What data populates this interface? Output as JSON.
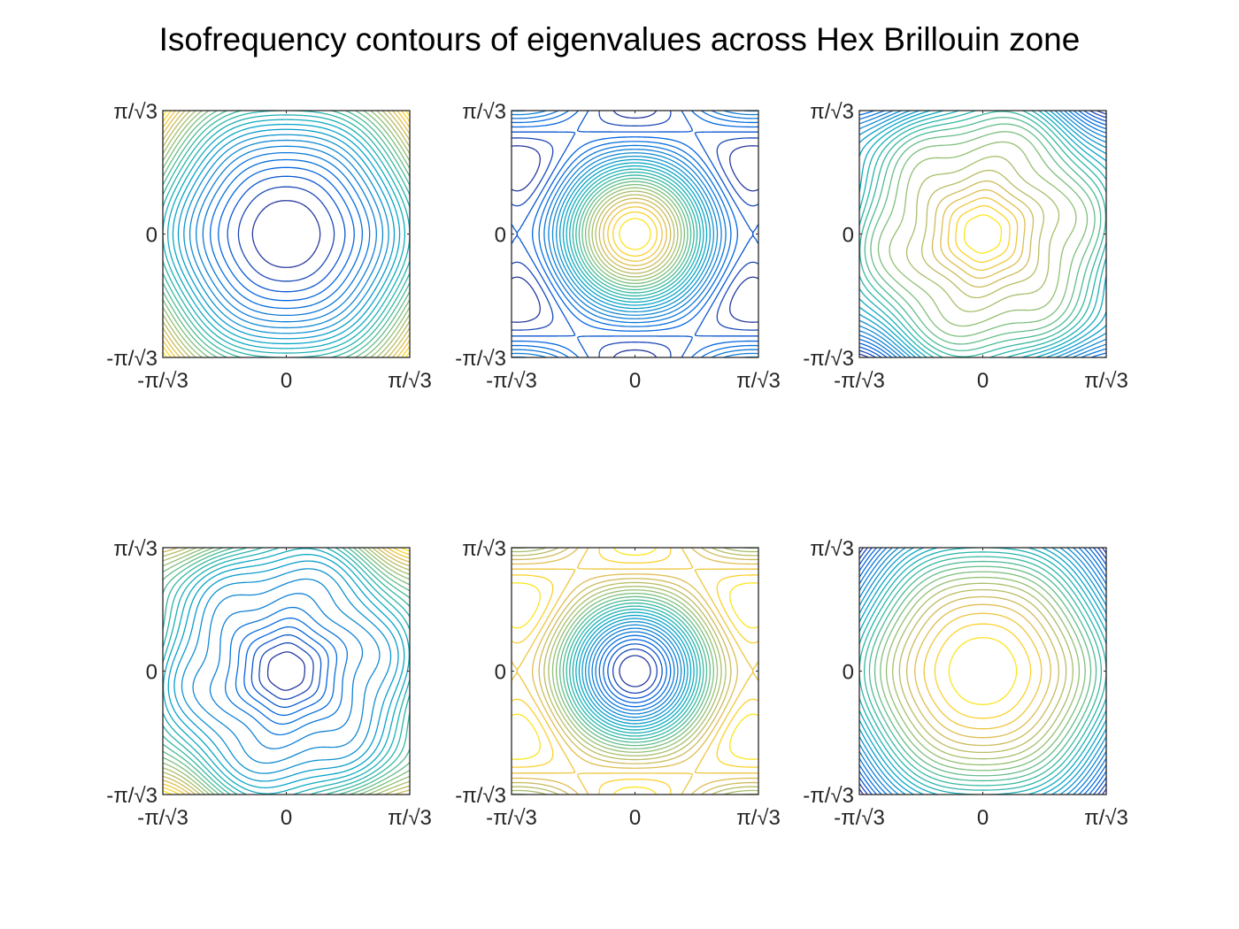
{
  "figure": {
    "title": "Isofrequency contours of eigenvalues across Hex Brillouin zone"
  },
  "chart_data": [
    {
      "type": "contour",
      "description_shape": "circular",
      "center_color": "low",
      "xlim": [
        -1.8138,
        1.8138
      ],
      "ylim": [
        -1.8138,
        1.8138
      ],
      "xticklabels": [
        "-π/√3",
        "0",
        "π/√3"
      ],
      "yticklabels": [
        "-π/√3",
        "0",
        "π/√3"
      ],
      "x_ticks": [
        -1.8138,
        0,
        1.8138
      ],
      "y_ticks": [
        -1.8138,
        0,
        1.8138
      ],
      "grid": false,
      "colormap": "parula"
    },
    {
      "type": "contour",
      "description_shape": "hexagonal",
      "center_color": "high",
      "xlim": [
        -1.8138,
        1.8138
      ],
      "ylim": [
        -1.8138,
        1.8138
      ],
      "xticklabels": [
        "-π/√3",
        "0",
        "π/√3"
      ],
      "yticklabels": [
        "-π/√3",
        "0",
        "π/√3"
      ],
      "x_ticks": [
        -1.8138,
        0,
        1.8138
      ],
      "y_ticks": [
        -1.8138,
        0,
        1.8138
      ],
      "grid": false,
      "colormap": "parula"
    },
    {
      "type": "contour",
      "description_shape": "six-lobed",
      "center_color": "high",
      "xlim": [
        -1.8138,
        1.8138
      ],
      "ylim": [
        -1.8138,
        1.8138
      ],
      "xticklabels": [
        "-π/√3",
        "0",
        "π/√3"
      ],
      "yticklabels": [
        "-π/√3",
        "0",
        "π/√3"
      ],
      "x_ticks": [
        -1.8138,
        0,
        1.8138
      ],
      "y_ticks": [
        -1.8138,
        0,
        1.8138
      ],
      "grid": false,
      "colormap": "parula"
    },
    {
      "type": "contour",
      "description_shape": "six-lobed",
      "center_color": "low",
      "xlim": [
        -1.8138,
        1.8138
      ],
      "ylim": [
        -1.8138,
        1.8138
      ],
      "xticklabels": [
        "-π/√3",
        "0",
        "π/√3"
      ],
      "yticklabels": [
        "-π/√3",
        "0",
        "π/√3"
      ],
      "x_ticks": [
        -1.8138,
        0,
        1.8138
      ],
      "y_ticks": [
        -1.8138,
        0,
        1.8138
      ],
      "grid": false,
      "colormap": "parula"
    },
    {
      "type": "contour",
      "description_shape": "hexagonal",
      "center_color": "low",
      "xlim": [
        -1.8138,
        1.8138
      ],
      "ylim": [
        -1.8138,
        1.8138
      ],
      "xticklabels": [
        "-π/√3",
        "0",
        "π/√3"
      ],
      "yticklabels": [
        "-π/√3",
        "0",
        "π/√3"
      ],
      "x_ticks": [
        -1.8138,
        0,
        1.8138
      ],
      "y_ticks": [
        -1.8138,
        0,
        1.8138
      ],
      "grid": false,
      "colormap": "parula"
    },
    {
      "type": "contour",
      "description_shape": "circular",
      "center_color": "high",
      "xlim": [
        -1.8138,
        1.8138
      ],
      "ylim": [
        -1.8138,
        1.8138
      ],
      "xticklabels": [
        "-π/√3",
        "0",
        "π/√3"
      ],
      "yticklabels": [
        "-π/√3",
        "0",
        "π/√3"
      ],
      "x_ticks": [
        -1.8138,
        0,
        1.8138
      ],
      "y_ticks": [
        -1.8138,
        0,
        1.8138
      ],
      "grid": false,
      "colormap": "parula"
    }
  ]
}
